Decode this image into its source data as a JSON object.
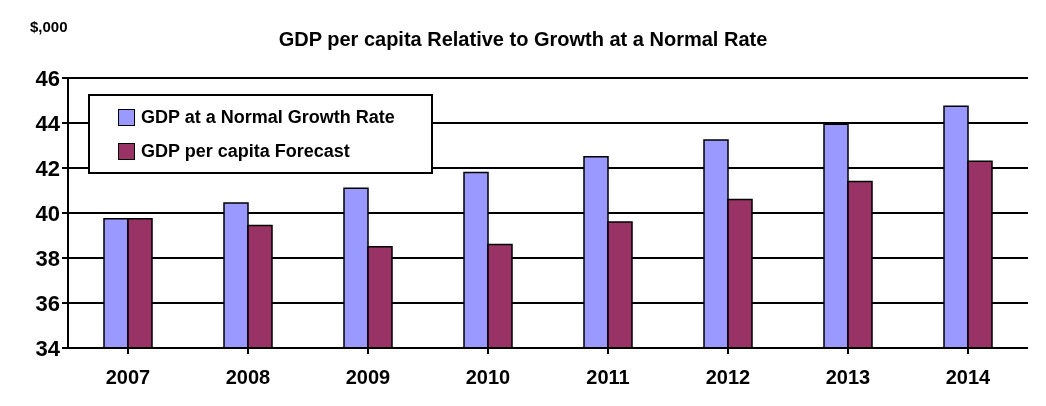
{
  "chart_data": {
    "type": "bar",
    "title": "GDP per capita Relative to Growth at a Normal Rate",
    "ylabel": "$,000",
    "categories": [
      "2007",
      "2008",
      "2009",
      "2010",
      "2011",
      "2012",
      "2013",
      "2014"
    ],
    "series": [
      {
        "name": "GDP at a Normal Growth Rate",
        "color": "#9999ff",
        "values": [
          39.75,
          40.45,
          41.1,
          41.8,
          42.5,
          43.25,
          43.95,
          44.75
        ]
      },
      {
        "name": "GDP per capita Forecast",
        "color": "#993366",
        "values": [
          39.75,
          39.45,
          38.5,
          38.6,
          39.6,
          40.6,
          41.4,
          42.3
        ]
      }
    ],
    "ylim": [
      34,
      46
    ],
    "yticks": [
      34,
      36,
      38,
      40,
      42,
      44,
      46
    ],
    "grid": "y",
    "legend": "top left"
  }
}
